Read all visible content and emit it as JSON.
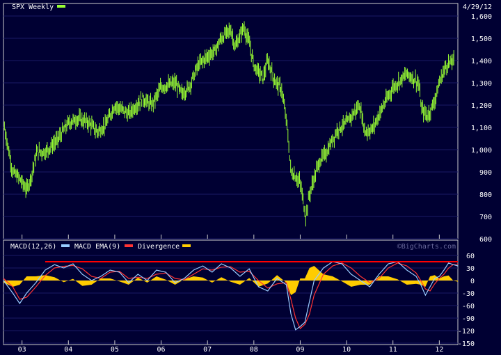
{
  "chart_data": [
    {
      "type": "ohlc",
      "title": "SPX Weekly",
      "date": "4/29/12",
      "colors": {
        "price": "#99ff33",
        "background": "#000033",
        "frame": "#cccccc"
      },
      "ylim": [
        600,
        1600
      ],
      "yticks": [
        600,
        700,
        800,
        900,
        1000,
        1100,
        1200,
        1300,
        1400,
        1500,
        1600
      ],
      "ytick_labels": [
        "600",
        "700",
        "800",
        "900",
        "1,000",
        "1,100",
        "1,200",
        "1,300",
        "1,400",
        "1,500",
        "1,600"
      ],
      "xlim": [
        2002.6,
        2012.4
      ],
      "xticks": [
        2003,
        2004,
        2005,
        2006,
        2007,
        2008,
        2009,
        2010,
        2011,
        2012
      ],
      "xtick_labels": [
        "03",
        "04",
        "05",
        "06",
        "07",
        "08",
        "09",
        "10",
        "11",
        "12"
      ],
      "series": [
        {
          "name": "SPX Weekly",
          "x": [
            2002.62,
            2002.8,
            2002.95,
            2003.1,
            2003.2,
            2003.32,
            2003.5,
            2003.75,
            2004.0,
            2004.2,
            2004.45,
            2004.62,
            2004.8,
            2005.0,
            2005.3,
            2005.6,
            2005.8,
            2006.0,
            2006.3,
            2006.45,
            2006.6,
            2006.8,
            2007.0,
            2007.15,
            2007.3,
            2007.5,
            2007.6,
            2007.78,
            2007.9,
            2008.0,
            2008.2,
            2008.3,
            2008.45,
            2008.6,
            2008.72,
            2008.8,
            2008.9,
            2009.0,
            2009.12,
            2009.2,
            2009.4,
            2009.6,
            2009.8,
            2010.0,
            2010.28,
            2010.4,
            2010.55,
            2010.8,
            2011.0,
            2011.3,
            2011.45,
            2011.55,
            2011.62,
            2011.75,
            2011.9,
            2012.0,
            2012.15,
            2012.32
          ],
          "y": [
            1100,
            900,
            870,
            820,
            880,
            990,
            990,
            1040,
            1120,
            1140,
            1120,
            1080,
            1110,
            1200,
            1160,
            1230,
            1200,
            1280,
            1300,
            1250,
            1280,
            1380,
            1420,
            1440,
            1500,
            1540,
            1460,
            1550,
            1480,
            1380,
            1320,
            1400,
            1310,
            1270,
            1100,
            900,
            880,
            850,
            700,
            800,
            940,
            1000,
            1090,
            1120,
            1200,
            1080,
            1090,
            1200,
            1280,
            1340,
            1320,
            1300,
            1180,
            1150,
            1220,
            1300,
            1380,
            1400
          ]
        }
      ]
    },
    {
      "type": "line",
      "legend": [
        "MACD(12,26)",
        "MACD EMA(9)",
        "Divergence"
      ],
      "watermark": "©BigCharts.com",
      "colors": {
        "macd": "#99ccff",
        "ema": "#ff3333",
        "divergence": "#ffcc00",
        "reference": "#ff0000"
      },
      "ylim": [
        -150,
        60
      ],
      "yticks": [
        60,
        30,
        0,
        -30,
        -60,
        -90,
        -120,
        -150
      ],
      "ytick_labels": [
        "60",
        "30",
        "0",
        "-30",
        "-60",
        "-90",
        "-120",
        "-150"
      ],
      "reference_line": {
        "y": 45,
        "x_start": 2003.5,
        "x_end": 2012.4
      },
      "x": [
        2002.6,
        2002.8,
        2002.95,
        2003.1,
        2003.3,
        2003.5,
        2003.7,
        2003.9,
        2004.1,
        2004.3,
        2004.5,
        2004.7,
        2004.9,
        2005.1,
        2005.3,
        2005.5,
        2005.7,
        2005.9,
        2006.1,
        2006.3,
        2006.5,
        2006.7,
        2006.9,
        2007.1,
        2007.3,
        2007.5,
        2007.7,
        2007.9,
        2008.1,
        2008.3,
        2008.5,
        2008.7,
        2008.8,
        2008.9,
        2009.0,
        2009.1,
        2009.2,
        2009.3,
        2009.5,
        2009.7,
        2009.9,
        2010.1,
        2010.3,
        2010.5,
        2010.7,
        2010.9,
        2011.1,
        2011.3,
        2011.5,
        2011.6,
        2011.7,
        2011.8,
        2011.9,
        2012.0,
        2012.1,
        2012.2,
        2012.3,
        2012.4
      ],
      "macd": [
        0,
        -30,
        -55,
        -30,
        -5,
        25,
        38,
        30,
        40,
        15,
        0,
        10,
        25,
        20,
        -5,
        15,
        0,
        25,
        20,
        -5,
        5,
        25,
        35,
        20,
        40,
        30,
        10,
        28,
        -15,
        -25,
        5,
        -10,
        -80,
        -118,
        -110,
        -100,
        -50,
        0,
        30,
        45,
        40,
        15,
        0,
        -15,
        15,
        40,
        45,
        25,
        10,
        -10,
        -35,
        -15,
        5,
        10,
        25,
        42,
        38,
        35
      ],
      "ema": [
        5,
        -15,
        -45,
        -40,
        -15,
        12,
        30,
        34,
        36,
        28,
        10,
        5,
        20,
        22,
        5,
        8,
        5,
        15,
        18,
        5,
        2,
        15,
        28,
        25,
        32,
        33,
        20,
        22,
        0,
        -18,
        -8,
        -5,
        -45,
        -90,
        -115,
        -105,
        -80,
        -35,
        15,
        35,
        42,
        30,
        10,
        -5,
        5,
        30,
        42,
        35,
        18,
        0,
        -20,
        -25,
        -8,
        5,
        15,
        30,
        38,
        38
      ],
      "divergence": [
        -5,
        -15,
        -10,
        10,
        10,
        13,
        8,
        -4,
        4,
        -13,
        -10,
        5,
        5,
        -2,
        -10,
        7,
        -5,
        10,
        2,
        -10,
        3,
        10,
        7,
        -5,
        8,
        -3,
        -10,
        6,
        -15,
        -7,
        13,
        -5,
        -35,
        -28,
        5,
        5,
        30,
        35,
        15,
        10,
        -2,
        -15,
        -10,
        -10,
        10,
        10,
        3,
        -10,
        -8,
        -10,
        -15,
        10,
        13,
        5,
        10,
        12,
        0,
        -3
      ]
    }
  ]
}
